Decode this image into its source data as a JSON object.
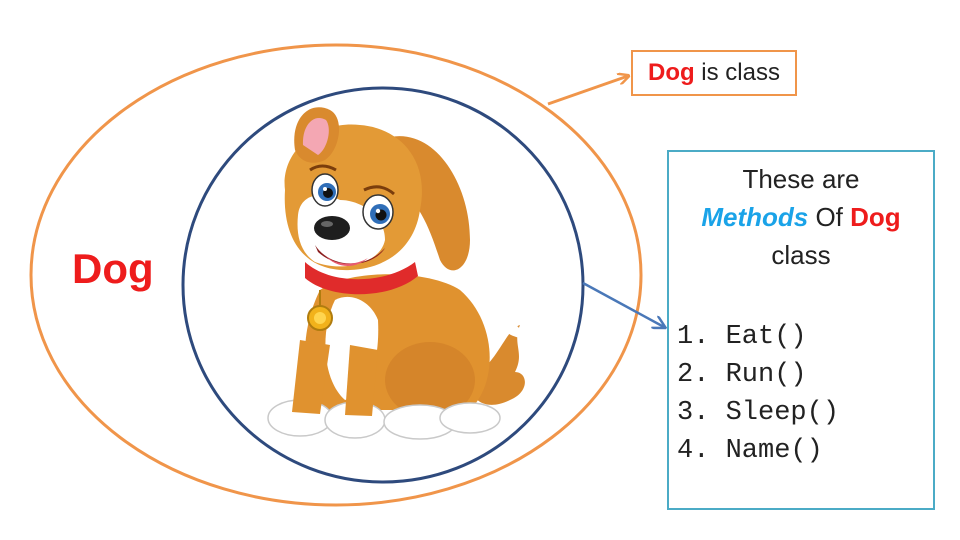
{
  "diagram": {
    "dog_label": "Dog",
    "class_callout": {
      "highlight": "Dog",
      "text": " is class"
    },
    "methods_callout": {
      "line1": "These are",
      "methods_word": "Methods",
      "of_word": " Of ",
      "dog_word": "Dog",
      "line3": "class",
      "methods": [
        {
          "num": "1.",
          "name": "Eat()"
        },
        {
          "num": "2.",
          "name": "Run()"
        },
        {
          "num": "3.",
          "name": "Sleep()"
        },
        {
          "num": "4.",
          "name": "Name()"
        }
      ]
    },
    "colors": {
      "outer_ellipse": "#f0954a",
      "inner_circle": "#2e4a7d",
      "methods_border": "#4babc6",
      "label_red": "#ee1c1c",
      "methods_blue": "#1aa3e8"
    },
    "illustration": "cartoon-dog"
  }
}
